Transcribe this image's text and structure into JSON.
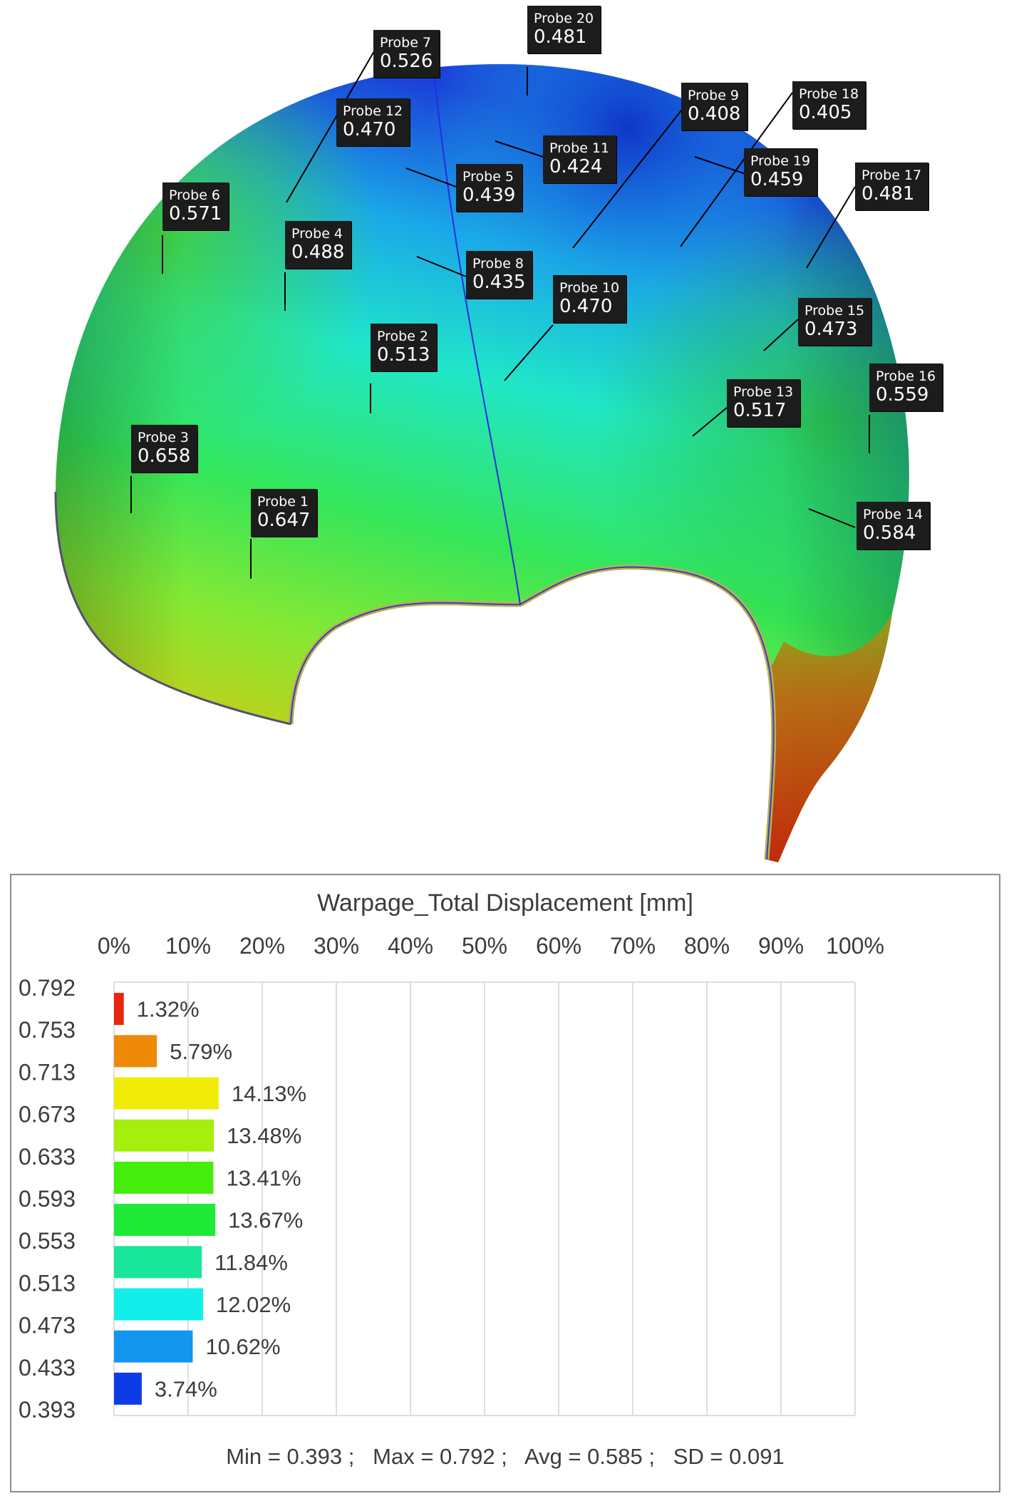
{
  "probes": [
    {
      "name": "Probe 1",
      "value": "0.647"
    },
    {
      "name": "Probe 2",
      "value": "0.513"
    },
    {
      "name": "Probe 3",
      "value": "0.658"
    },
    {
      "name": "Probe 4",
      "value": "0.488"
    },
    {
      "name": "Probe 5",
      "value": "0.439"
    },
    {
      "name": "Probe 6",
      "value": "0.571"
    },
    {
      "name": "Probe 7",
      "value": "0.526"
    },
    {
      "name": "Probe 8",
      "value": "0.435"
    },
    {
      "name": "Probe 9",
      "value": "0.408"
    },
    {
      "name": "Probe 10",
      "value": "0.470"
    },
    {
      "name": "Probe 11",
      "value": "0.424"
    },
    {
      "name": "Probe 12",
      "value": "0.470"
    },
    {
      "name": "Probe 13",
      "value": "0.517"
    },
    {
      "name": "Probe 14",
      "value": "0.584"
    },
    {
      "name": "Probe 15",
      "value": "0.473"
    },
    {
      "name": "Probe 16",
      "value": "0.559"
    },
    {
      "name": "Probe 17",
      "value": "0.481"
    },
    {
      "name": "Probe 18",
      "value": "0.405"
    },
    {
      "name": "Probe 19",
      "value": "0.459"
    },
    {
      "name": "Probe 20",
      "value": "0.481"
    }
  ],
  "legend": {
    "title": "Warpage_Total Displacement [mm]",
    "stats": "Min = 0.393 ;   Max = 0.792 ;   Avg = 0.585 ;   SD = 0.091"
  },
  "chart_data": {
    "type": "bar",
    "orientation": "horizontal",
    "title": "Warpage_Total Displacement [mm]",
    "x_tick_labels": [
      "0%",
      "10%",
      "20%",
      "30%",
      "40%",
      "50%",
      "60%",
      "70%",
      "80%",
      "90%",
      "100%"
    ],
    "xlim": [
      0,
      100
    ],
    "y_tick_labels": [
      "0.792",
      "0.753",
      "0.713",
      "0.673",
      "0.633",
      "0.593",
      "0.553",
      "0.513",
      "0.473",
      "0.433",
      "0.393"
    ],
    "values": [
      1.32,
      5.79,
      14.13,
      13.48,
      13.41,
      13.67,
      11.84,
      12.02,
      10.62,
      3.74
    ],
    "value_labels": [
      "1.32%",
      "5.79%",
      "14.13%",
      "13.48%",
      "13.41%",
      "13.67%",
      "11.84%",
      "12.02%",
      "10.62%",
      "3.74%"
    ],
    "bar_colors": [
      "#e8250f",
      "#ef8a08",
      "#f1ec05",
      "#a6ee0e",
      "#44ed0c",
      "#1eea38",
      "#18e69a",
      "#12eeea",
      "#1296ee",
      "#0f3be6"
    ],
    "grid": true,
    "stats": {
      "min": 0.393,
      "max": 0.792,
      "avg": 0.585,
      "sd": 0.091
    }
  }
}
